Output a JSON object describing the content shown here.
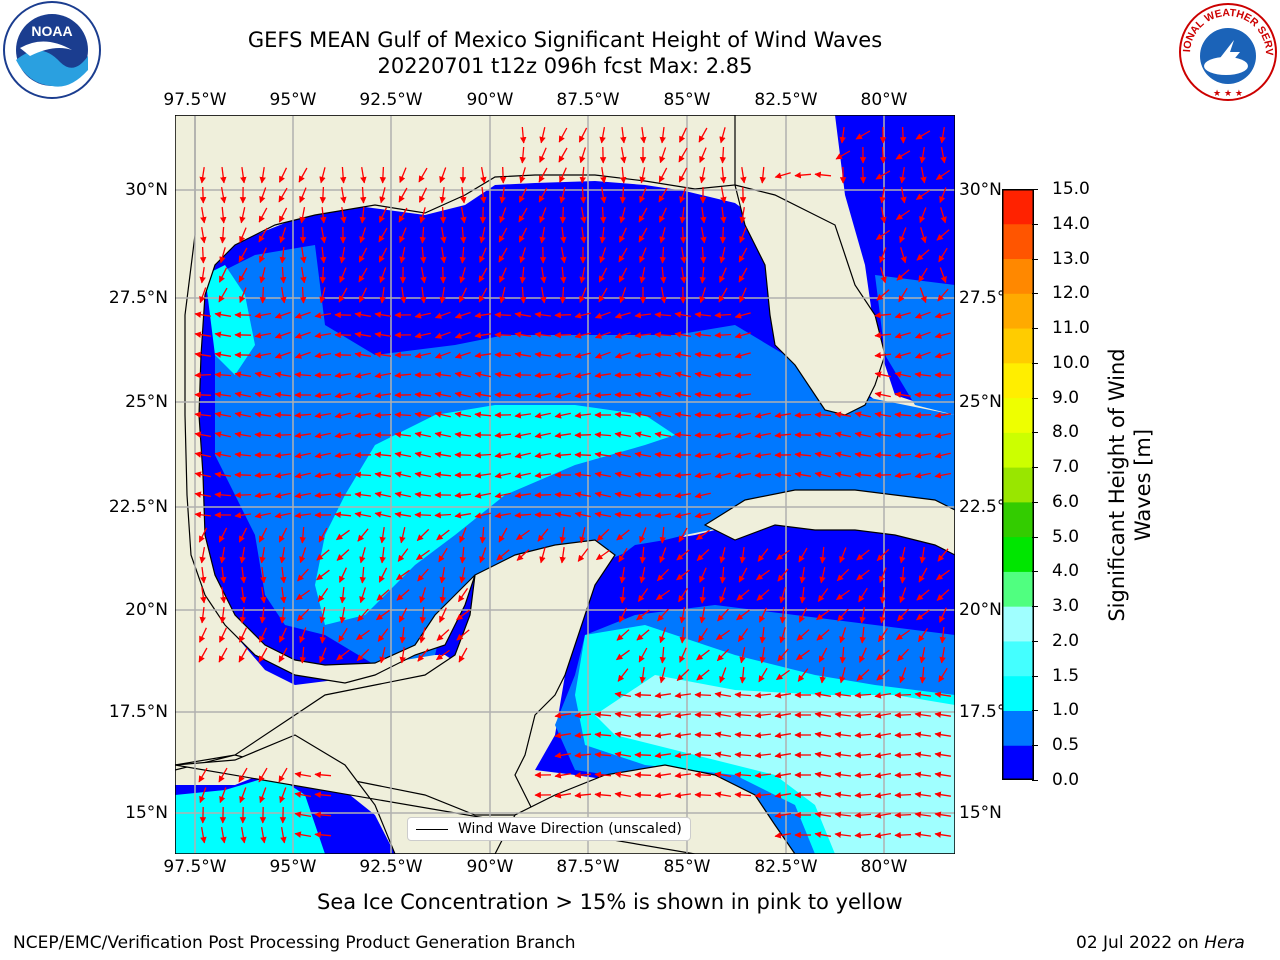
{
  "header": {
    "title": "GEFS MEAN Gulf of Mexico Significant Height of Wind Waves",
    "subtitle": "20220701 t12z 096h fcst   Max: 2.85"
  },
  "logos": {
    "left": "NOAA",
    "right": "NATIONAL WEATHER SERVICE"
  },
  "map": {
    "lon_ticks": [
      "97.5°W",
      "95°W",
      "92.5°W",
      "90°W",
      "87.5°W",
      "85°W",
      "82.5°W",
      "80°W"
    ],
    "lat_ticks": [
      "30°N",
      "27.5°N",
      "25°N",
      "22.5°N",
      "20°N",
      "17.5°N",
      "15°N"
    ],
    "lat_ticks_right": [
      "30°N",
      "27.5°N",
      "25°N",
      "22.5°N",
      "20°N",
      "17.5°N",
      "15°N"
    ],
    "legend_label": "Wind Wave Direction (unscaled)",
    "colors": {
      "land": "#efefdb",
      "grid": "#b0b0b0",
      "arrow": "#ff0000",
      "coast": "#000000"
    }
  },
  "colorbar": {
    "label": "Significant Height of Wind Waves [m]",
    "ticks": [
      "0.0",
      "0.5",
      "1.0",
      "1.5",
      "2.0",
      "3.0",
      "4.0",
      "5.0",
      "6.0",
      "7.0",
      "8.0",
      "9.0",
      "10.0",
      "11.0",
      "12.0",
      "13.0",
      "14.0",
      "15.0"
    ],
    "colors": [
      "#0000ff",
      "#0078ff",
      "#00ffff",
      "#44ffff",
      "#a0ffff",
      "#50ff80",
      "#00e600",
      "#33cc00",
      "#99e600",
      "#ccff00",
      "#eeff00",
      "#ffee00",
      "#ffcc00",
      "#ffaa00",
      "#ff8800",
      "#ff5500",
      "#ff2200"
    ]
  },
  "note": "Sea Ice Concentration > 15% is shown in pink to yellow",
  "footer": {
    "left": "NCEP/EMC/Verification Post Processing Product Generation Branch",
    "right_date": "02 Jul 2022 on ",
    "right_host": "Hera"
  }
}
